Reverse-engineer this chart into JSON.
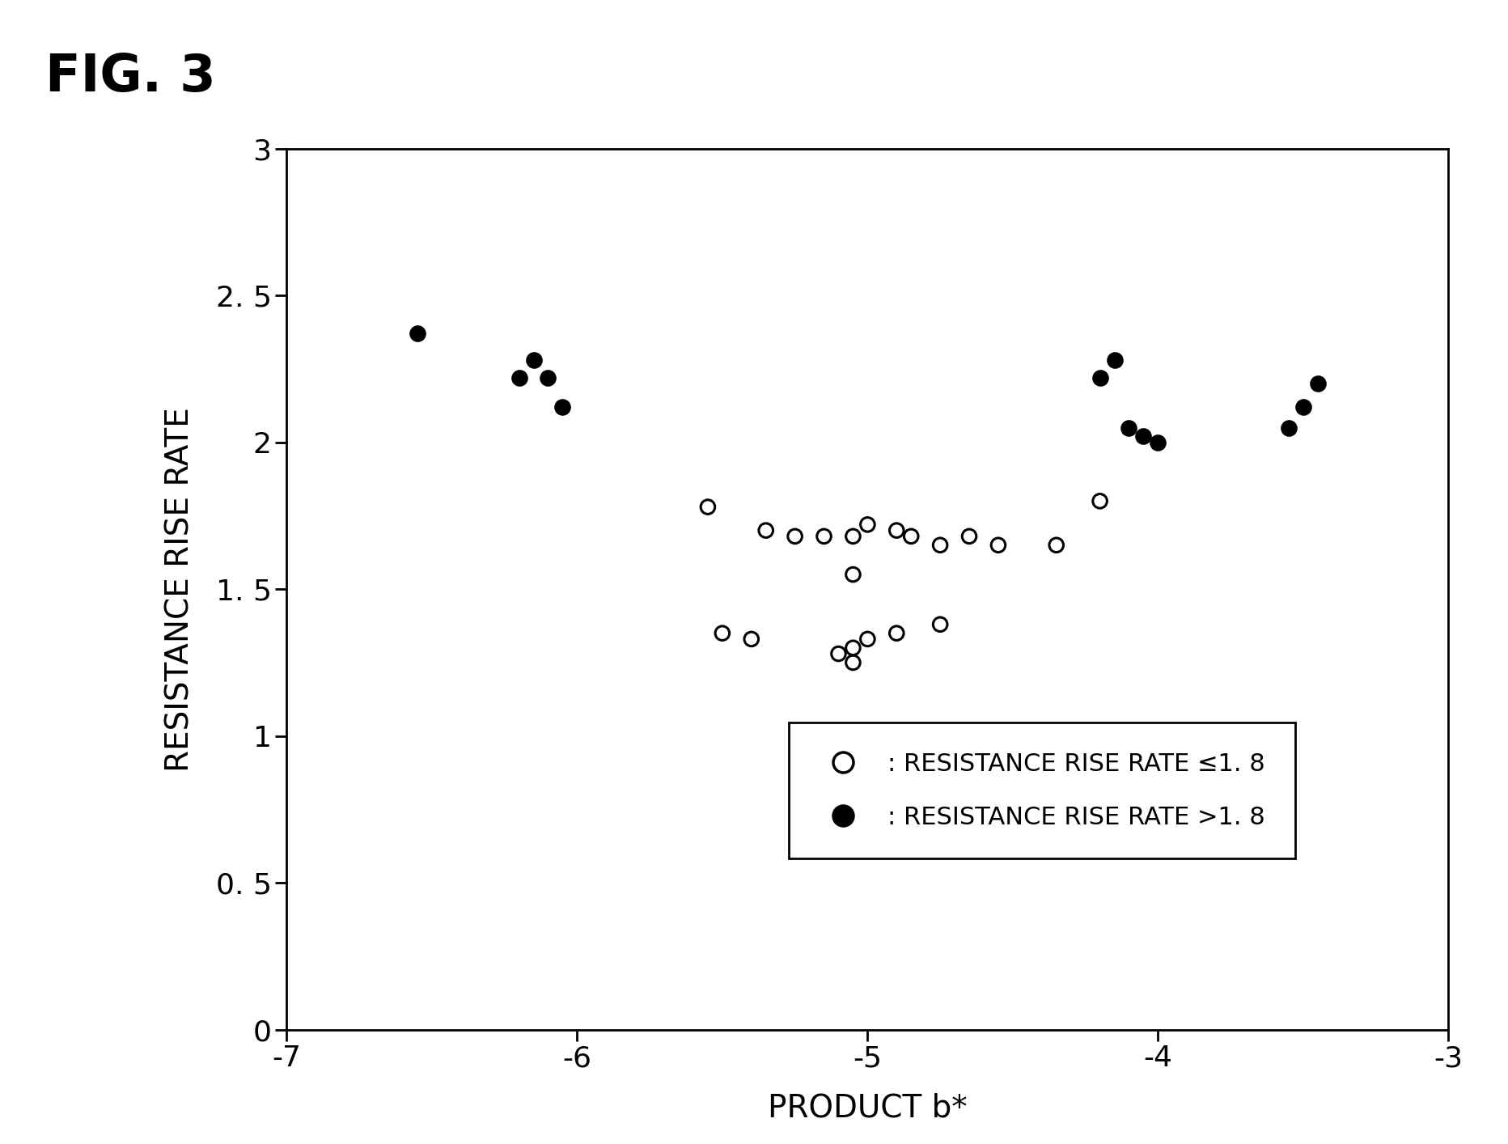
{
  "title": "FIG. 3",
  "xlabel": "PRODUCT b*",
  "ylabel": "RESISTANCE RISE RATE",
  "xlim": [
    -7,
    -3
  ],
  "ylim": [
    0,
    3
  ],
  "xticks": [
    -7,
    -6,
    -5,
    -4,
    -3
  ],
  "ytick_vals": [
    0,
    0.5,
    1,
    1.5,
    2,
    2.5,
    3
  ],
  "ytick_labels": [
    "0",
    "0. 5",
    "1",
    "1. 5",
    "2",
    "2. 5",
    "3"
  ],
  "xtick_labels": [
    "-7",
    "-6",
    "-5",
    "-4",
    "-3"
  ],
  "open_points": [
    [
      -5.55,
      1.78
    ],
    [
      -5.35,
      1.7
    ],
    [
      -5.25,
      1.68
    ],
    [
      -5.15,
      1.68
    ],
    [
      -5.05,
      1.68
    ],
    [
      -5.0,
      1.72
    ],
    [
      -4.9,
      1.7
    ],
    [
      -4.85,
      1.68
    ],
    [
      -4.75,
      1.65
    ],
    [
      -4.65,
      1.68
    ],
    [
      -4.55,
      1.65
    ],
    [
      -4.35,
      1.65
    ],
    [
      -5.5,
      1.35
    ],
    [
      -5.4,
      1.33
    ],
    [
      -5.1,
      1.28
    ],
    [
      -5.05,
      1.3
    ],
    [
      -5.05,
      1.25
    ],
    [
      -5.0,
      1.33
    ],
    [
      -4.9,
      1.35
    ],
    [
      -4.75,
      1.38
    ],
    [
      -5.05,
      1.55
    ],
    [
      -4.2,
      1.8
    ]
  ],
  "filled_points": [
    [
      -6.55,
      2.37
    ],
    [
      -6.2,
      2.22
    ],
    [
      -6.15,
      2.28
    ],
    [
      -6.1,
      2.22
    ],
    [
      -6.05,
      2.12
    ],
    [
      -4.2,
      2.22
    ],
    [
      -4.15,
      2.28
    ],
    [
      -4.1,
      2.05
    ],
    [
      -4.05,
      2.02
    ],
    [
      -4.0,
      2.0
    ],
    [
      -3.55,
      2.05
    ],
    [
      -3.5,
      2.12
    ],
    [
      -3.45,
      2.2
    ]
  ],
  "legend_open_label": ": RESISTANCE RISE RATE ≤1. 8",
  "legend_filled_label": ": RESISTANCE RISE RATE >1. 8",
  "background_color": "#ffffff",
  "marker_size": 160,
  "marker_edge_width": 2.2,
  "title_fontsize": 46,
  "tick_fontsize": 26,
  "axis_label_fontsize": 28,
  "legend_fontsize": 22
}
